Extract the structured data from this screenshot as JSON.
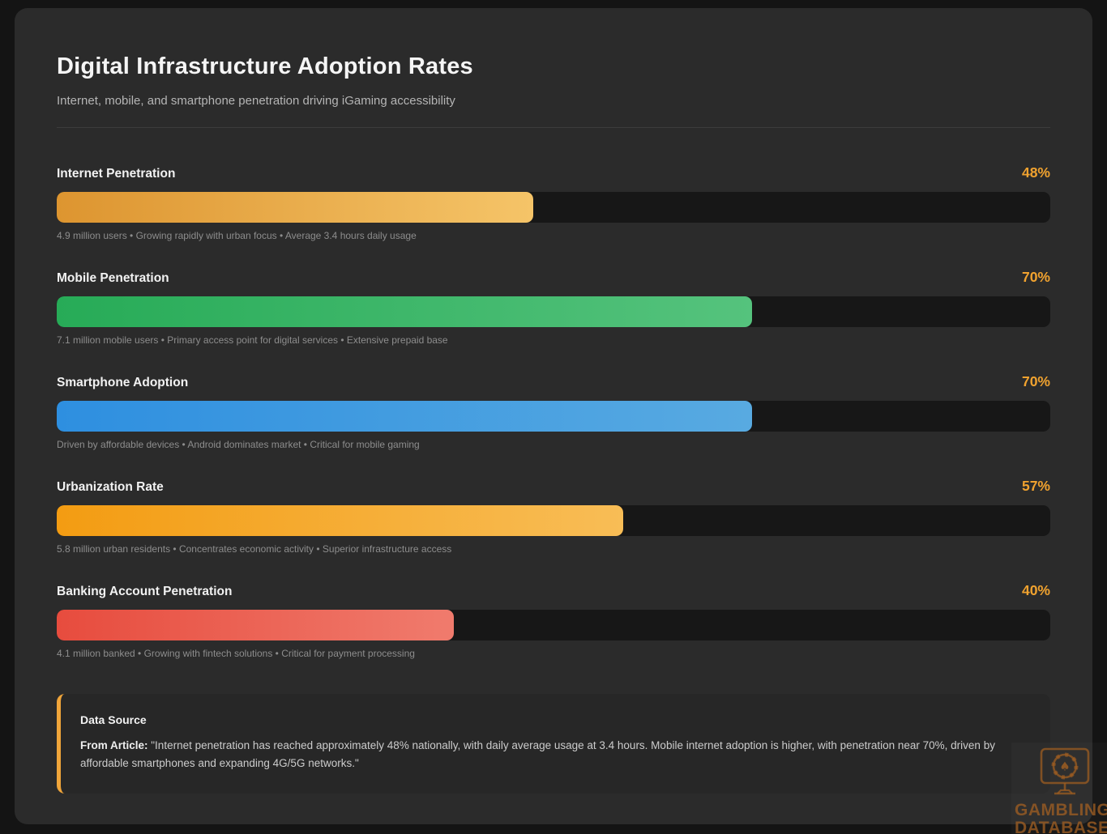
{
  "page": {
    "title": "Digital Infrastructure Adoption Rates",
    "subtitle": "Internet, mobile, and smartphone penetration driving iGaming accessibility"
  },
  "chart_data": {
    "type": "bar",
    "orientation": "horizontal",
    "title": "Digital Infrastructure Adoption Rates",
    "subtitle": "Internet, mobile, and smartphone penetration driving iGaming accessibility",
    "unit": "%",
    "xlim": [
      0,
      100
    ],
    "grid": false,
    "categories": [
      "Internet Penetration",
      "Mobile Penetration",
      "Smartphone Adoption",
      "Urbanization Rate",
      "Banking Account Penetration"
    ],
    "values": [
      48,
      70,
      70,
      57,
      40
    ],
    "value_labels": [
      "48%",
      "70%",
      "70%",
      "57%",
      "40%"
    ],
    "annotations": [
      "4.9 million users • Growing rapidly with urban focus • Average 3.4 hours daily usage",
      "7.1 million mobile users • Primary access point for digital services • Extensive prepaid base",
      "Driven by affordable devices • Android dominates market • Critical for mobile gaming",
      "5.8 million urban residents • Concentrates economic activity • Superior infrastructure access",
      "4.1 million banked • Growing with fintech solutions • Critical for payment processing"
    ]
  },
  "metrics": [
    {
      "label": "Internet Penetration",
      "value": "48%",
      "pct": 48,
      "detail": "4.9 million users • Growing rapidly with urban focus • Average 3.4 hours daily usage",
      "gradient": [
        "#dd9530",
        "#f5c468"
      ]
    },
    {
      "label": "Mobile Penetration",
      "value": "70%",
      "pct": 70,
      "detail": "7.1 million mobile users • Primary access point for digital services • Extensive prepaid base",
      "gradient": [
        "#27ab57",
        "#55c37d"
      ]
    },
    {
      "label": "Smartphone Adoption",
      "value": "70%",
      "pct": 70,
      "detail": "Driven by affordable devices • Android dominates market • Critical for mobile gaming",
      "gradient": [
        "#2e8fe0",
        "#58aae1"
      ]
    },
    {
      "label": "Urbanization Rate",
      "value": "57%",
      "pct": 57,
      "detail": "5.8 million urban residents • Concentrates economic activity • Superior infrastructure access",
      "gradient": [
        "#f39c12",
        "#f8bd56"
      ]
    },
    {
      "label": "Banking Account Penetration",
      "value": "40%",
      "pct": 40,
      "detail": "4.1 million banked • Growing with fintech solutions • Critical for payment processing",
      "gradient": [
        "#e74c3e",
        "#f07b6d"
      ]
    }
  ],
  "data_source": {
    "heading": "Data Source",
    "prefix": "From Article:",
    "quote": "\"Internet penetration has reached approximately 48% nationally, with daily average usage at 3.4 hours. Mobile internet adoption is higher, with penetration near 70%, driven by affordable smartphones and expanding 4G/5G networks.\""
  },
  "watermark": {
    "line1": "GAMBLING",
    "line2": "DATABASES"
  },
  "colors": {
    "accent_orange": "#f0a22f",
    "card_background": "#2b2b2b",
    "page_background": "#141414",
    "bar_track": "#171717",
    "source_border": "#f0a53a",
    "watermark": "#9e5e22"
  }
}
